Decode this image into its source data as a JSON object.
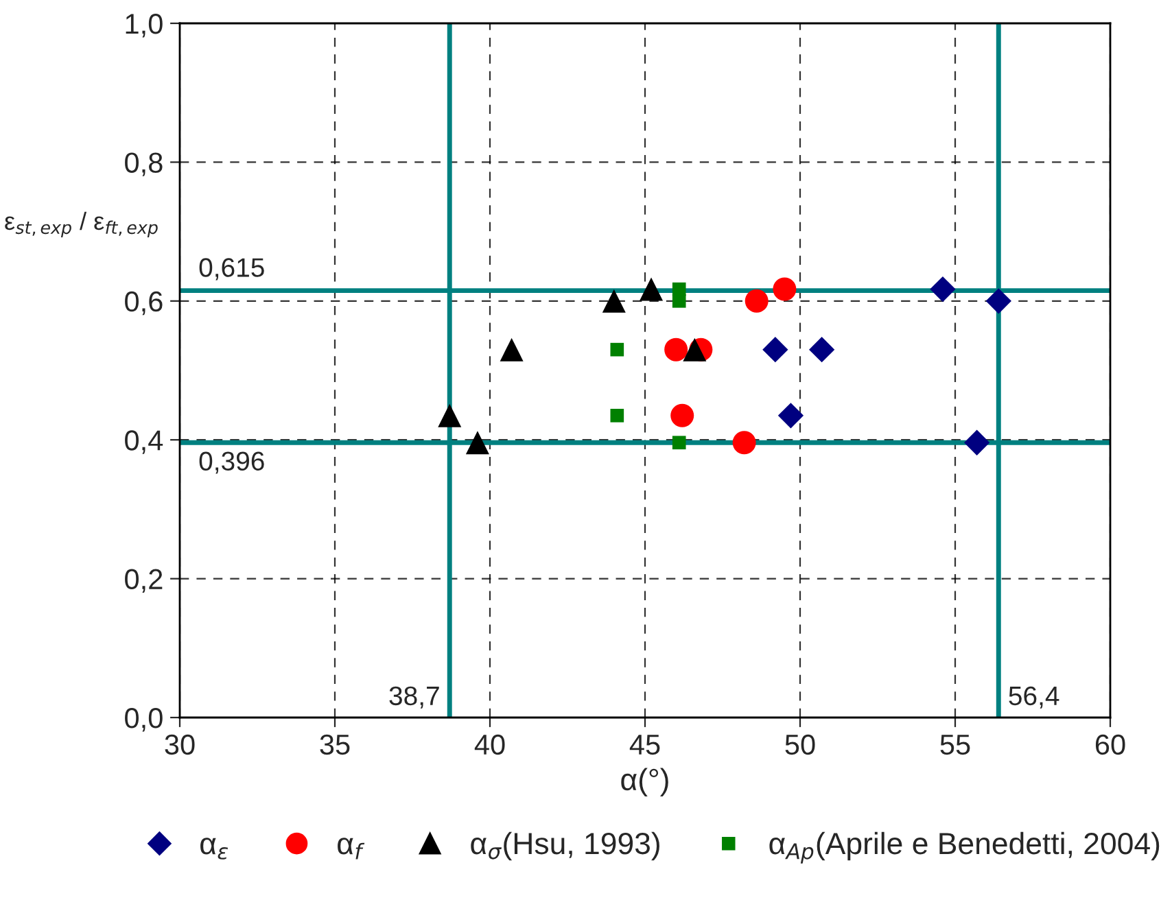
{
  "chart_data": {
    "type": "scatter",
    "xlabel": "α(°)",
    "ylabel": "ε$_{st,exp}$ / ε$_{ft,exp}$",
    "xlim": [
      30,
      60
    ],
    "ylim": [
      0,
      1
    ],
    "xticks": [
      30,
      35,
      40,
      45,
      50,
      55,
      60
    ],
    "yticks": [
      {
        "value": 0,
        "label": "0,0"
      },
      {
        "value": 0.2,
        "label": "0,2"
      },
      {
        "value": 0.4,
        "label": "0,4"
      },
      {
        "value": 0.6,
        "label": "0,6"
      },
      {
        "value": 0.8,
        "label": "0,8"
      },
      {
        "value": 1.0,
        "label": "1,0"
      }
    ],
    "grid": true,
    "legend": "bottom",
    "series": [
      {
        "name": "α$_{ε}$",
        "color": "#000080",
        "marker": "diamond",
        "x": [
          49.2,
          50.7,
          49.7,
          54.6,
          56.4,
          55.7
        ],
        "values": [
          0.53,
          0.53,
          0.435,
          0.617,
          0.6,
          0.396
        ]
      },
      {
        "name": "α$_{f}$",
        "color": "#ff0000",
        "marker": "circle",
        "x": [
          46.0,
          46.8,
          46.2,
          48.2,
          48.6,
          49.5
        ],
        "values": [
          0.53,
          0.53,
          0.435,
          0.396,
          0.6,
          0.617
        ]
      },
      {
        "name": "α$_{σ}$(Hsu, 1993)",
        "color": "#000000",
        "marker": "triangle",
        "x": [
          38.7,
          39.6,
          40.7,
          44.0,
          45.2,
          46.6
        ],
        "values": [
          0.435,
          0.396,
          0.53,
          0.6,
          0.617,
          0.53
        ]
      },
      {
        "name": "α$_{Ap}$(Aprile e Benedetti, 2004)",
        "color": "#008000",
        "marker": "square",
        "x": [
          44.1,
          44.1,
          46.1,
          46.1,
          46.1
        ],
        "values": [
          0.53,
          0.435,
          0.396,
          0.617,
          0.6
        ]
      }
    ],
    "ref_lines": [
      {
        "axis": "x",
        "value": 38.7,
        "label": "38,7",
        "color": "#008080"
      },
      {
        "axis": "x",
        "value": 56.4,
        "label": "56,4",
        "color": "#008080"
      },
      {
        "axis": "y",
        "value": 0.615,
        "label": "0,615",
        "color": "#008080"
      },
      {
        "axis": "y",
        "value": 0.396,
        "label": "0,396",
        "color": "#008080"
      }
    ]
  }
}
